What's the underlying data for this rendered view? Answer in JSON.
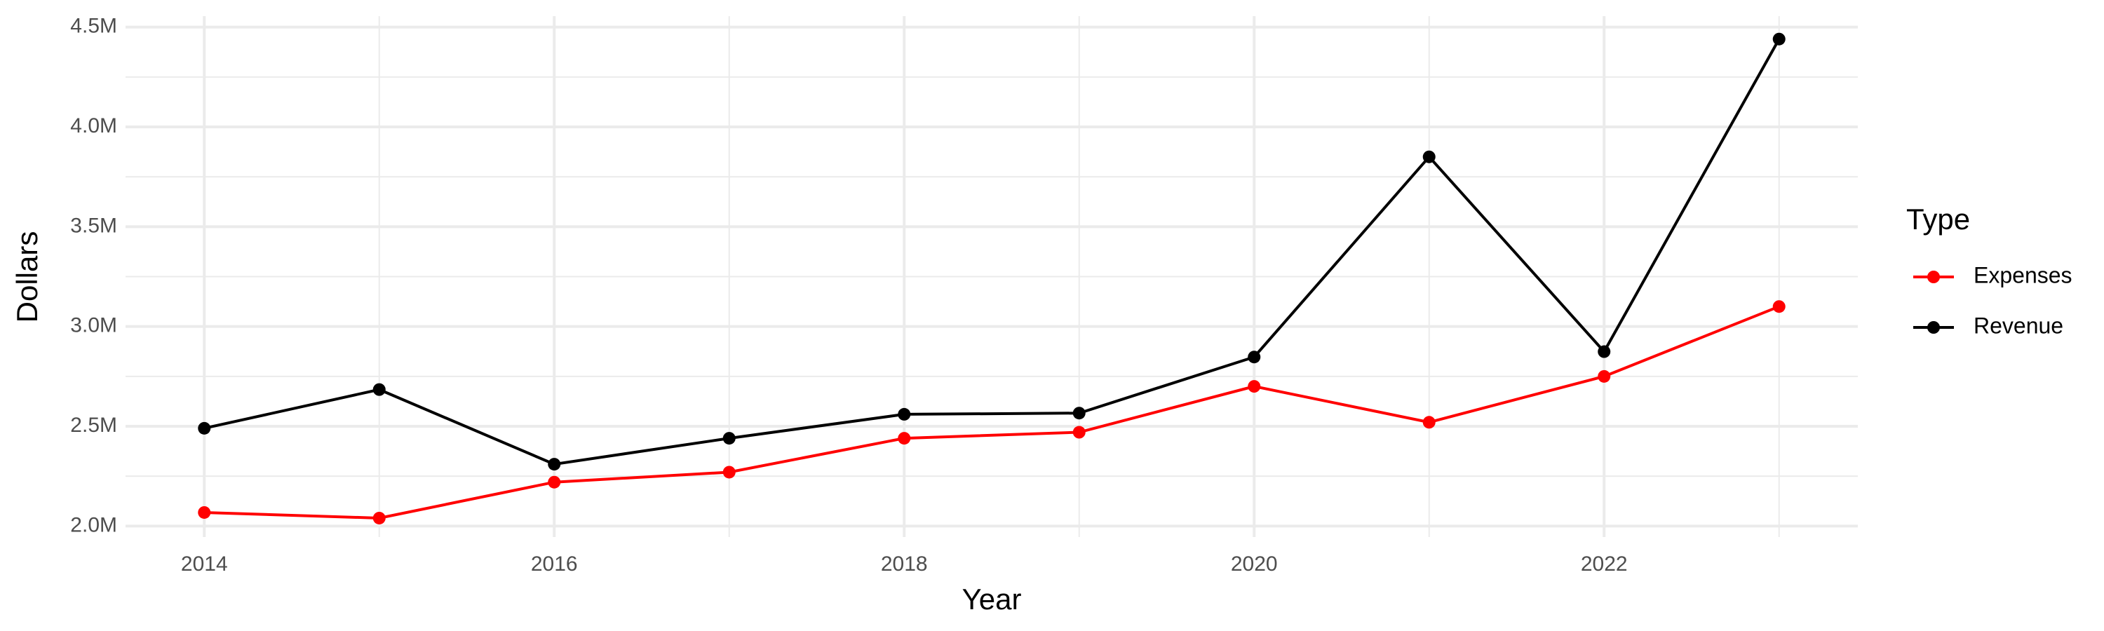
{
  "chart_data": {
    "type": "line",
    "x_label": "Year",
    "y_label": "Dollars",
    "legend_title": "Type",
    "x": [
      2014,
      2015,
      2016,
      2017,
      2018,
      2019,
      2020,
      2021,
      2022,
      2023
    ],
    "series": [
      {
        "name": "Expenses",
        "color": "#ff0000",
        "values": [
          2068000,
          2040000,
          2220000,
          2270000,
          2440000,
          2470000,
          2700000,
          2520000,
          2750000,
          3100000
        ]
      },
      {
        "name": "Revenue",
        "color": "#000000",
        "values": [
          2490000,
          2684000,
          2310000,
          2440000,
          2560000,
          2566000,
          2847000,
          3850000,
          2874000,
          4440000
        ]
      }
    ],
    "xlim": [
      2013.55,
      2023.45
    ],
    "xticks": [
      2014,
      2016,
      2018,
      2020,
      2022
    ],
    "ylim": [
      1945000,
      4555000
    ],
    "yticks": [
      {
        "value": 2000000,
        "label": "2.0M"
      },
      {
        "value": 2500000,
        "label": "2.5M"
      },
      {
        "value": 3000000,
        "label": "3.0M"
      },
      {
        "value": 3500000,
        "label": "3.5M"
      },
      {
        "value": 4000000,
        "label": "4.0M"
      },
      {
        "value": 4500000,
        "label": "4.5M"
      }
    ],
    "grid": true,
    "legend": "right"
  }
}
